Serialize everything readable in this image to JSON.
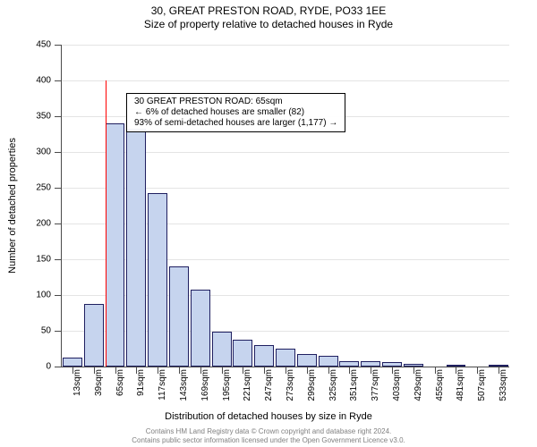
{
  "title1": "30, GREAT PRESTON ROAD, RYDE, PO33 1EE",
  "title2": "Size of property relative to detached houses in Ryde",
  "title_fontsize": 12,
  "title_color": "#000000",
  "ylabel": "Number of detached properties",
  "xlabel": "Distribution of detached houses by size in Ryde",
  "axis_label_fontsize": 11,
  "axis_label_color": "#000000",
  "tick_fontsize": 10,
  "tick_color": "#000000",
  "ylim": [
    0,
    450
  ],
  "yticks": [
    0,
    50,
    100,
    150,
    200,
    250,
    300,
    350,
    400,
    450
  ],
  "xticks": [
    "13sqm",
    "39sqm",
    "65sqm",
    "91sqm",
    "117sqm",
    "143sqm",
    "169sqm",
    "195sqm",
    "221sqm",
    "247sqm",
    "273sqm",
    "299sqm",
    "325sqm",
    "351sqm",
    "377sqm",
    "403sqm",
    "429sqm",
    "455sqm",
    "481sqm",
    "507sqm",
    "533sqm"
  ],
  "series": {
    "values": [
      12,
      88,
      340,
      332,
      243,
      140,
      107,
      49,
      38,
      30,
      25,
      18,
      15,
      8,
      7,
      6,
      4,
      0,
      1,
      0,
      2
    ],
    "fill_color": "#c6d4ee",
    "border_color": "#1f1f60",
    "bar_width_frac": 0.92
  },
  "marker": {
    "x_index": 2,
    "color": "#ff0000",
    "height_value": 400
  },
  "annotation": {
    "line1": "30 GREAT PRESTON ROAD: 65sqm",
    "line2": "← 6% of detached houses are smaller (82)",
    "line3": "93% of semi-detached houses are larger (1,177) →",
    "fontsize": 10,
    "border_color": "#000000"
  },
  "footer": {
    "line1": "Contains HM Land Registry data © Crown copyright and database right 2024.",
    "line2": "Contains public sector information licensed under the Open Government Licence v3.0.",
    "fontsize": 8,
    "color": "#808080"
  },
  "background_color": "#ffffff",
  "grid_color": "#4a4a4a",
  "grid_alpha": 0.15
}
